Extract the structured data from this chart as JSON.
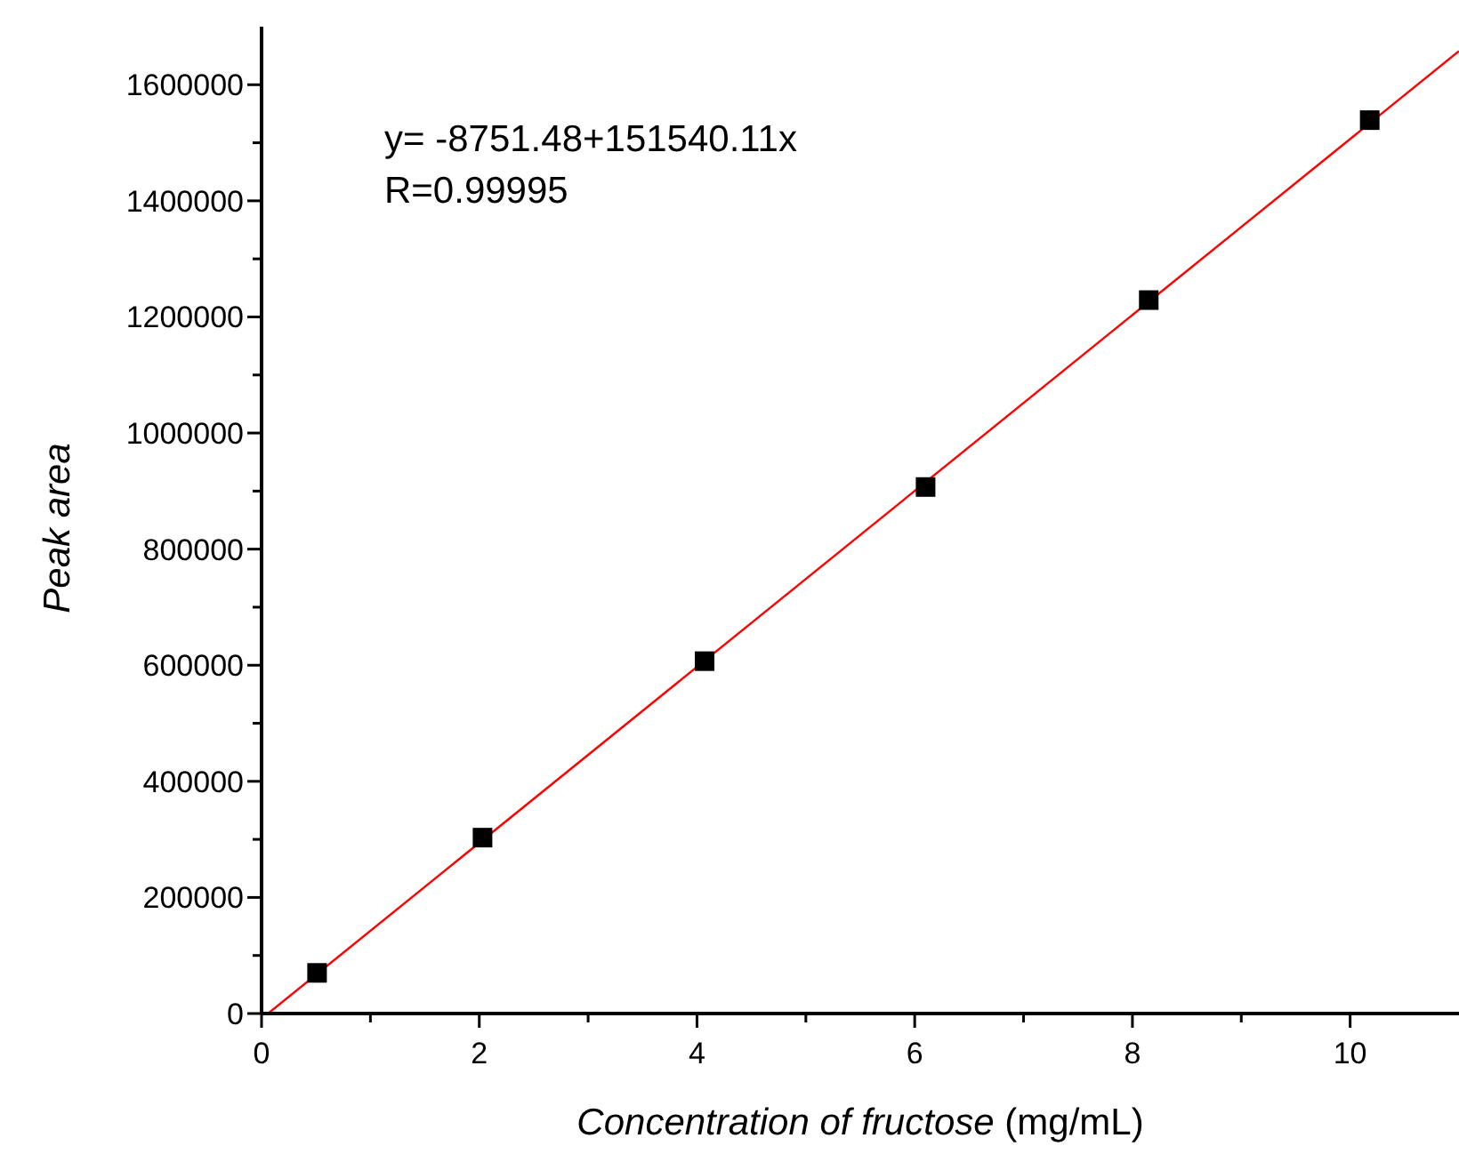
{
  "chart_data": {
    "type": "scatter",
    "xlabel": "Concentration of fructose (mg/mL)",
    "ylabel": "Peak area",
    "annotations": [
      "y= -8751.48+151540.11x",
      "R=0.99995"
    ],
    "series": [
      {
        "color": "#000000",
        "marker": "square",
        "x": [
          0.51,
          2.03,
          4.07,
          6.1,
          8.15,
          10.18
        ],
        "values": [
          70000,
          303000,
          607000,
          907000,
          1229000,
          1539000
        ]
      },
      {
        "type": "line",
        "color": "#ff0000",
        "marker": "none",
        "x": [
          0.06,
          11
        ],
        "values": [
          0,
          1658000
        ]
      }
    ],
    "xlim": [
      0,
      11
    ],
    "ylim": [
      0,
      1700000
    ],
    "xticks": [
      0,
      {
        "value": 1,
        "label": null
      },
      2,
      {
        "value": 3,
        "label": null
      },
      4,
      {
        "value": 5,
        "label": null
      },
      6,
      {
        "value": 7,
        "label": null
      },
      8,
      {
        "value": 9,
        "label": null
      },
      10
    ],
    "yticks": [
      0,
      {
        "value": 100000,
        "label": null
      },
      200000,
      {
        "value": 300000,
        "label": null
      },
      400000,
      {
        "value": 500000,
        "label": null
      },
      600000,
      {
        "value": 700000,
        "label": null
      },
      800000,
      {
        "value": 900000,
        "label": null
      },
      1000000,
      {
        "value": 1100000,
        "label": null
      },
      1200000,
      {
        "value": 1300000,
        "label": null
      },
      1400000,
      {
        "value": 1500000,
        "label": null
      },
      1600000
    ],
    "grid": false,
    "legend": false
  }
}
